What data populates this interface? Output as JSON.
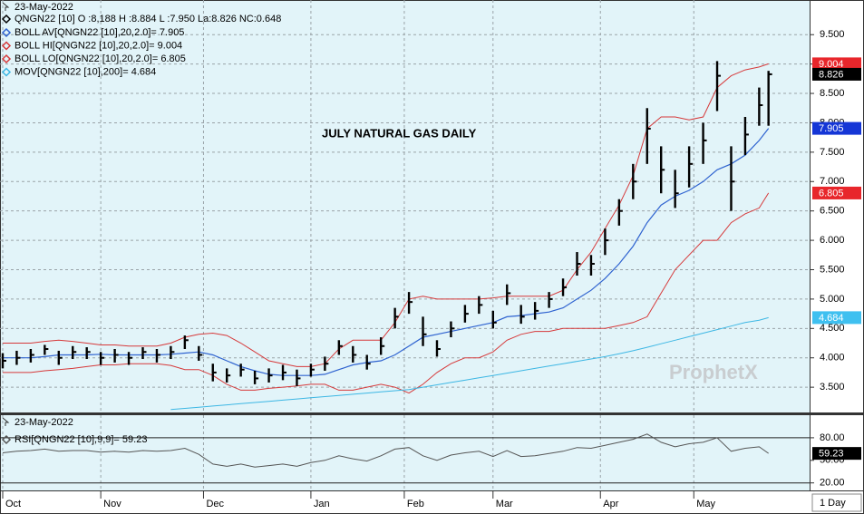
{
  "chart_data": [
    {
      "type": "ohlc",
      "date": "23-May-2022",
      "title": "JULY NATURAL GAS DAILY",
      "watermark": "ProphetX",
      "period": "1 Day",
      "x": [
        0,
        3,
        6,
        9,
        12,
        15,
        18,
        21,
        24,
        27,
        30,
        33,
        36,
        39,
        42,
        45,
        48,
        51,
        54,
        57,
        60,
        63,
        66,
        69,
        72,
        75,
        78,
        81,
        84,
        87,
        90,
        93,
        96,
        99,
        102,
        105,
        108,
        111,
        114,
        117,
        120,
        123,
        126,
        129,
        132,
        135,
        138,
        141,
        144,
        147,
        150,
        153,
        156,
        159,
        162,
        164
      ],
      "xlim": [
        -0.58,
        172.8
      ],
      "xticks": [
        {
          "value": 0,
          "label": "Oct"
        },
        {
          "value": 21,
          "label": "Nov"
        },
        {
          "value": 43,
          "label": "Dec"
        },
        {
          "value": 66,
          "label": "Jan"
        },
        {
          "value": 86,
          "label": "Feb"
        },
        {
          "value": 105,
          "label": "Mar"
        },
        {
          "value": 128,
          "label": "Apr"
        },
        {
          "value": 148,
          "label": "May"
        }
      ],
      "ylim": [
        3.07,
        10.09
      ],
      "yticks": [
        {
          "value": 3.5,
          "label": "3.500"
        },
        {
          "value": 4,
          "label": "4.000"
        },
        {
          "value": 4.5,
          "label": "4.500"
        },
        {
          "value": 5,
          "label": "5.000"
        },
        {
          "value": 5.5,
          "label": "5.500"
        },
        {
          "value": 6,
          "label": "6.000"
        },
        {
          "value": 6.5,
          "label": "6.500"
        },
        {
          "value": 7,
          "label": "7.000"
        },
        {
          "value": 7.5,
          "label": "7.500"
        },
        {
          "value": 8,
          "label": "8.000"
        },
        {
          "value": 8.5,
          "label": "8.500"
        },
        {
          "value": 9,
          "label": "9.000"
        },
        {
          "value": 9.5,
          "label": "9.500"
        }
      ],
      "grid": true,
      "price": {
        "name": "QNGN22 [10] O :8,188 H :8.884 L :7.950 La:8.826 NC:0.648",
        "color": "#000000",
        "high": [
          4.08,
          4.12,
          4.15,
          4.22,
          4.12,
          4.2,
          4.18,
          4.1,
          4.15,
          4.1,
          4.18,
          4.15,
          4.2,
          4.38,
          4.2,
          3.9,
          3.82,
          3.9,
          3.78,
          3.82,
          3.88,
          3.8,
          3.9,
          4.02,
          4.3,
          4.2,
          4.05,
          4.35,
          4.85,
          5.12,
          4.7,
          4.3,
          4.62,
          4.9,
          5.05,
          4.8,
          5.25,
          4.9,
          4.95,
          5.12,
          5.35,
          5.8,
          5.75,
          6.2,
          6.7,
          7.3,
          8.25,
          7.6,
          7.2,
          7.6,
          8.0,
          9.05,
          7.6,
          8.1,
          8.6,
          8.884
        ],
        "low": [
          3.82,
          3.88,
          3.92,
          4.05,
          3.88,
          3.98,
          3.98,
          3.88,
          3.92,
          3.88,
          3.98,
          3.92,
          3.98,
          4.15,
          3.95,
          3.6,
          3.58,
          3.68,
          3.55,
          3.58,
          3.62,
          3.52,
          3.68,
          3.78,
          4.05,
          3.92,
          3.8,
          4.05,
          4.5,
          4.75,
          4.2,
          4.02,
          4.35,
          4.6,
          4.75,
          4.5,
          4.9,
          4.58,
          4.65,
          4.85,
          5.05,
          5.4,
          5.4,
          5.75,
          6.25,
          6.7,
          7.3,
          6.8,
          6.55,
          6.9,
          7.3,
          8.2,
          6.5,
          7.45,
          7.95,
          7.95
        ],
        "close": [
          3.95,
          4.0,
          4.05,
          4.15,
          4.0,
          4.1,
          4.1,
          4.0,
          4.05,
          4.0,
          4.1,
          4.05,
          4.1,
          4.3,
          4.05,
          3.75,
          3.7,
          3.8,
          3.65,
          3.7,
          3.75,
          3.65,
          3.8,
          3.9,
          4.2,
          4.05,
          3.9,
          4.2,
          4.7,
          4.95,
          4.4,
          4.15,
          4.5,
          4.75,
          4.9,
          4.6,
          5.1,
          4.7,
          4.8,
          5.0,
          5.2,
          5.6,
          5.6,
          6.0,
          6.5,
          7.0,
          7.9,
          7.2,
          6.8,
          7.3,
          7.7,
          8.8,
          7.0,
          7.8,
          8.3,
          8.826
        ]
      },
      "series": [
        {
          "name": "BOLL AV[QNGN22 [10],20,2.0]= 7.905",
          "color": "#2f63d0",
          "values": [
            4.0,
            4.0,
            4.0,
            4.02,
            4.05,
            4.05,
            4.05,
            4.06,
            4.05,
            4.05,
            4.05,
            4.05,
            4.06,
            4.08,
            4.1,
            4.05,
            3.95,
            3.85,
            3.78,
            3.72,
            3.7,
            3.7,
            3.7,
            3.72,
            3.8,
            3.88,
            3.92,
            3.95,
            4.05,
            4.2,
            4.35,
            4.4,
            4.45,
            4.5,
            4.55,
            4.6,
            4.7,
            4.72,
            4.75,
            4.78,
            4.85,
            5.0,
            5.15,
            5.35,
            5.6,
            5.9,
            6.3,
            6.6,
            6.75,
            6.85,
            7.0,
            7.2,
            7.3,
            7.45,
            7.7,
            7.905
          ]
        },
        {
          "name": "BOLL HI[QNGN22 [10],20,2.0]= 9.004",
          "color": "#d6393a",
          "values": [
            4.25,
            4.25,
            4.25,
            4.28,
            4.3,
            4.28,
            4.25,
            4.22,
            4.22,
            4.2,
            4.2,
            4.2,
            4.25,
            4.35,
            4.4,
            4.42,
            4.38,
            4.25,
            4.1,
            3.95,
            3.9,
            3.85,
            3.85,
            3.9,
            4.15,
            4.3,
            4.3,
            4.3,
            4.6,
            5.0,
            5.05,
            5.0,
            5.0,
            5.0,
            5.0,
            5.02,
            5.05,
            5.05,
            5.05,
            5.05,
            5.15,
            5.5,
            5.8,
            6.2,
            6.6,
            7.1,
            7.9,
            8.1,
            8.1,
            8.05,
            8.1,
            8.6,
            8.8,
            8.9,
            8.95,
            9.004
          ]
        },
        {
          "name": "BOLL LO[QNGN22 [10],20,2.0]= 6.805",
          "color": "#d6393a",
          "values": [
            3.75,
            3.75,
            3.75,
            3.78,
            3.8,
            3.82,
            3.85,
            3.88,
            3.88,
            3.9,
            3.9,
            3.9,
            3.87,
            3.8,
            3.8,
            3.7,
            3.55,
            3.45,
            3.45,
            3.48,
            3.5,
            3.52,
            3.55,
            3.55,
            3.45,
            3.45,
            3.5,
            3.55,
            3.5,
            3.4,
            3.55,
            3.75,
            3.9,
            4.0,
            4.0,
            4.1,
            4.3,
            4.4,
            4.45,
            4.45,
            4.5,
            4.5,
            4.5,
            4.5,
            4.55,
            4.6,
            4.7,
            5.1,
            5.5,
            5.75,
            6.0,
            6.0,
            6.3,
            6.45,
            6.55,
            6.805
          ]
        },
        {
          "name": "MOV[QNGN22 [10],200]= 4.684",
          "color": "#3db7e4",
          "values": [
            null,
            null,
            null,
            null,
            null,
            null,
            null,
            null,
            null,
            null,
            null,
            null,
            3.12,
            3.14,
            3.16,
            3.18,
            3.2,
            3.22,
            3.24,
            3.26,
            3.28,
            3.3,
            3.32,
            3.34,
            3.36,
            3.38,
            3.4,
            3.42,
            3.44,
            3.46,
            3.5,
            3.54,
            3.58,
            3.62,
            3.66,
            3.7,
            3.74,
            3.78,
            3.82,
            3.86,
            3.9,
            3.94,
            3.98,
            4.02,
            4.07,
            4.12,
            4.18,
            4.24,
            4.3,
            4.36,
            4.42,
            4.48,
            4.54,
            4.6,
            4.64,
            4.684
          ]
        }
      ],
      "price_tags": [
        {
          "value": 9.004,
          "color": "#e8262b"
        },
        {
          "value": 8.826,
          "color": "#000000"
        },
        {
          "value": 7.905,
          "color": "#1536d6"
        },
        {
          "value": 6.805,
          "color": "#e8262b"
        },
        {
          "value": 4.684,
          "color": "#3fc0f0"
        }
      ]
    },
    {
      "type": "line",
      "date": "23-May-2022",
      "ylim": [
        10,
        110
      ],
      "yticks": [
        {
          "value": 80,
          "label": "80.00"
        },
        {
          "value": 50,
          "label": "50.00"
        },
        {
          "value": 20,
          "label": "20.00"
        }
      ],
      "series": [
        {
          "name": "RSI[QNGN22 [10],9,9]= 59.23",
          "color": "#555555",
          "values": [
            60,
            62,
            63,
            65,
            62,
            63,
            63,
            61,
            62,
            61,
            63,
            62,
            63,
            66,
            58,
            45,
            42,
            45,
            41,
            43,
            45,
            42,
            47,
            50,
            56,
            52,
            49,
            56,
            65,
            67,
            56,
            50,
            57,
            60,
            62,
            55,
            63,
            55,
            56,
            59,
            62,
            67,
            66,
            70,
            74,
            78,
            85,
            74,
            68,
            72,
            74,
            80,
            62,
            66,
            68,
            59.23
          ]
        }
      ],
      "price_tags": [
        {
          "value": 59.23,
          "color": "#000000"
        }
      ]
    }
  ]
}
